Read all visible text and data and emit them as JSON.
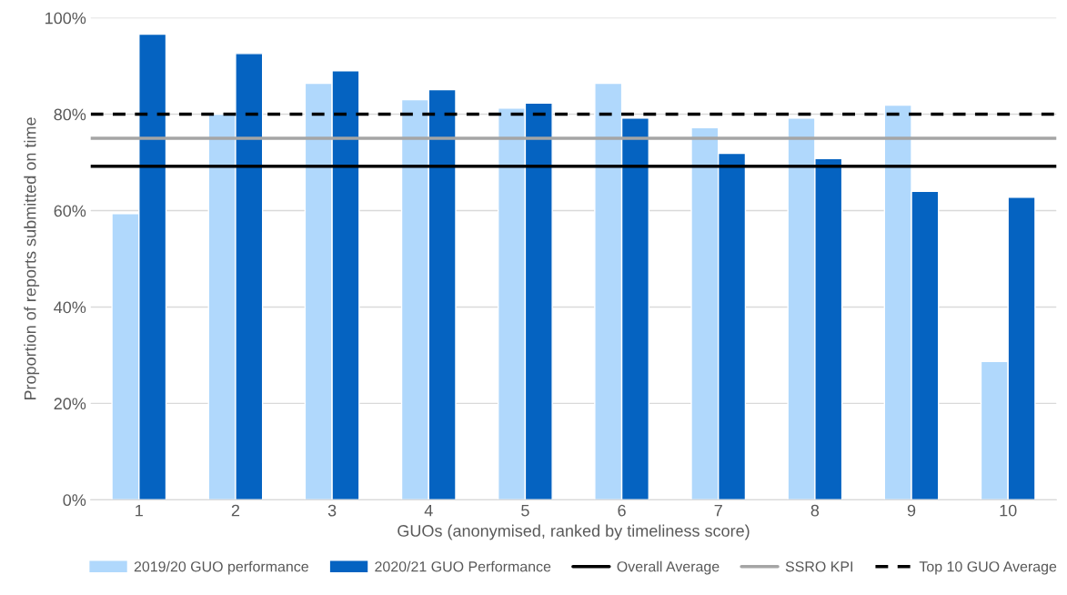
{
  "chart_data": {
    "type": "bar",
    "xlabel": "GUOs (anonymised, ranked by timeliness score)",
    "ylabel": "Proportion of reports submitted on time",
    "categories": [
      "1",
      "2",
      "3",
      "4",
      "5",
      "6",
      "7",
      "8",
      "9",
      "10"
    ],
    "series": [
      {
        "name": "2019/20 GUO performance",
        "color": "#b0d8fc",
        "values": [
          59.4,
          80,
          86.4,
          83,
          81.3,
          86.4,
          77.2,
          79.2,
          81.9,
          28.7
        ]
      },
      {
        "name": "2020/21 GUO Performance",
        "color": "#0563c1",
        "values": [
          96.6,
          92.6,
          89,
          85.1,
          82.3,
          79.2,
          71.9,
          70.8,
          64,
          62.8
        ]
      }
    ],
    "ref_lines": [
      {
        "axis": "y",
        "value": 69.2,
        "label": "Overall Average",
        "color": "#000000",
        "line_style": "solid"
      },
      {
        "axis": "y",
        "value": 75,
        "label": "SSRO KPI",
        "color": "#a5a5a5",
        "line_style": "solid"
      },
      {
        "axis": "y",
        "value": 80,
        "label": "Top 10 GUO Average",
        "color": "#000000",
        "line_style": "dashed"
      }
    ],
    "ylim": [
      0,
      100
    ],
    "yticks": [
      {
        "value": 0,
        "label": "0%"
      },
      {
        "value": 20,
        "label": "20%"
      },
      {
        "value": 40,
        "label": "40%"
      },
      {
        "value": 60,
        "label": "60%"
      },
      {
        "value": 80,
        "label": "80%"
      },
      {
        "value": 100,
        "label": "100%"
      }
    ],
    "grid": "y",
    "legend": "bottom"
  }
}
